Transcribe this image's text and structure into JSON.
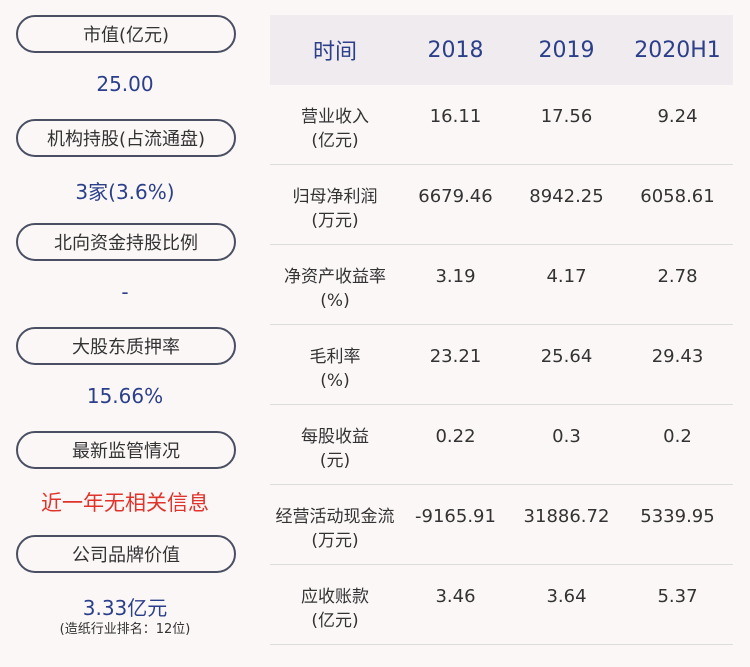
{
  "left": {
    "items": [
      {
        "label": "市值(亿元)",
        "value": "25.00"
      },
      {
        "label": "机构持股(占流通盘)",
        "value": "3家(3.6%)"
      },
      {
        "label": "北向资金持股比例",
        "value": "-"
      },
      {
        "label": "大股东质押率",
        "value": "15.66%"
      },
      {
        "label": "最新监管情况",
        "value": "近一年无相关信息"
      },
      {
        "label": "公司品牌价值",
        "value": "3.33亿元",
        "note": "(造纸行业排名：12位)"
      }
    ]
  },
  "table": {
    "headers": [
      "时间",
      "2018",
      "2019",
      "2020H1"
    ],
    "rows": [
      {
        "label_line1": "营业收入",
        "label_line2": "(亿元)",
        "values": [
          "16.11",
          "17.56",
          "9.24"
        ]
      },
      {
        "label_line1": "归母净利润",
        "label_line2": "(万元)",
        "values": [
          "6679.46",
          "8942.25",
          "6058.61"
        ]
      },
      {
        "label_line1": "净资产收益率",
        "label_line2": "(%)",
        "values": [
          "3.19",
          "4.17",
          "2.78"
        ]
      },
      {
        "label_line1": "毛利率",
        "label_line2": "(%)",
        "values": [
          "23.21",
          "25.64",
          "29.43"
        ]
      },
      {
        "label_line1": "每股收益",
        "label_line2": "(元)",
        "values": [
          "0.22",
          "0.3",
          "0.2"
        ]
      },
      {
        "label_line1": "经营活动现金流",
        "label_line2": "(万元)",
        "values": [
          "-9165.91",
          "31886.72",
          "5339.95"
        ]
      },
      {
        "label_line1": "应收账款",
        "label_line2": "(亿元)",
        "values": [
          "3.46",
          "3.64",
          "5.37"
        ]
      }
    ]
  },
  "colors": {
    "value_blue": "#2b3f8a",
    "alert_red": "#e0332b",
    "header_bg": "#efebee",
    "page_bg": "#fbf7f7"
  }
}
